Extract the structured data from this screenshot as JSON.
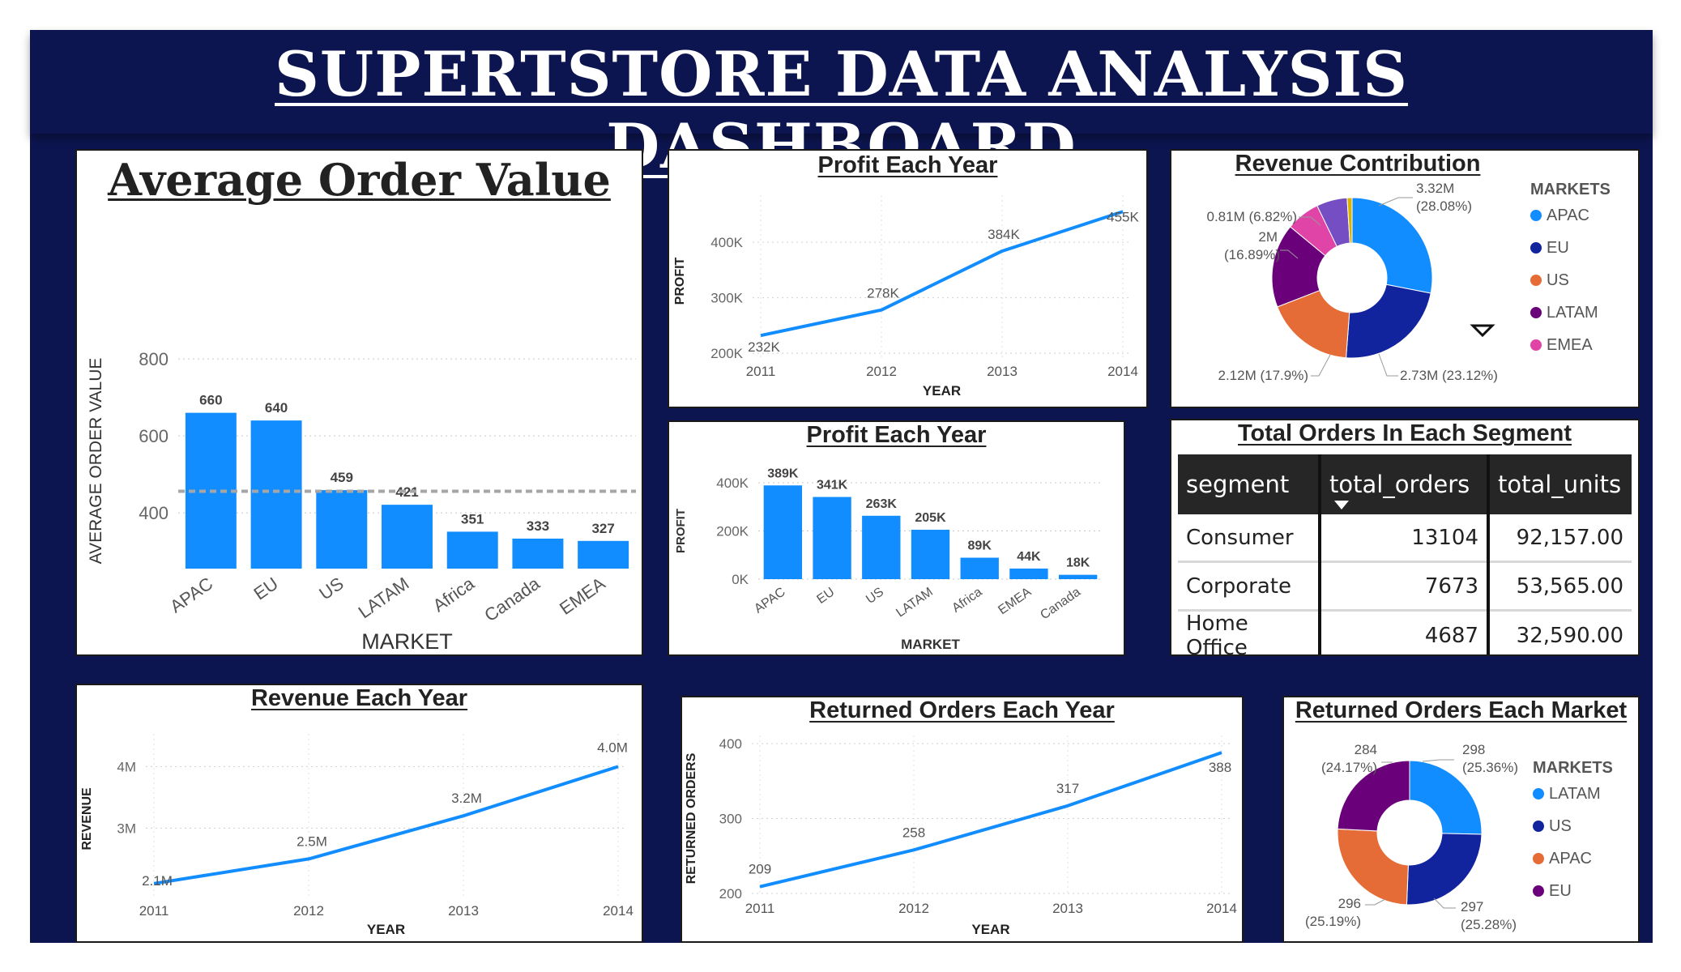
{
  "dashboard": {
    "title": "SUPERTSTORE DATA ANALYSIS DASHBOARD"
  },
  "colors": {
    "background": "#0d1550",
    "bar": "#118dff",
    "line": "#118dff"
  },
  "panels": {
    "avg_order": {
      "title": "Average Order Value",
      "chart_data": {
        "type": "bar",
        "title": "Average Order Value",
        "xlabel": "MARKET",
        "ylabel": "AVERAGE ORDER VALUE",
        "categories": [
          "APAC",
          "EU",
          "US",
          "LATAM",
          "Africa",
          "Canada",
          "EMEA"
        ],
        "values": [
          660,
          640,
          459,
          421,
          351,
          333,
          327
        ],
        "value_labels": [
          "660",
          "640",
          "459",
          "421",
          "351",
          "333",
          "327"
        ],
        "yticks": [
          "800",
          "600",
          "400"
        ],
        "ylim": [
          255,
          815
        ],
        "average_line": 456,
        "grid": true
      }
    },
    "profit_year": {
      "title": "Profit Each Year",
      "chart_data": {
        "type": "line",
        "title": "Profit Each Year",
        "xlabel": "YEAR",
        "ylabel": "PROFIT",
        "x": [
          "2011",
          "2012",
          "2013",
          "2014"
        ],
        "values": [
          232,
          278,
          384,
          455
        ],
        "value_labels": [
          "232K",
          "278K",
          "384K",
          "455K"
        ],
        "yticks": [
          "400K",
          "300K",
          "200K"
        ],
        "ylim": [
          190,
          470
        ],
        "grid": true
      }
    },
    "revenue_contrib": {
      "title": "Revenue Contribution",
      "chart_data": {
        "type": "pie",
        "title": "Revenue Contribution",
        "legend_title": "MARKETS",
        "legend": "right",
        "slices": [
          {
            "name": "APAC",
            "value": 28.08,
            "color": "#118dff",
            "label": "3.32M",
            "label2": "(28.08%)"
          },
          {
            "name": "EU",
            "value": 23.12,
            "color": "#12239e",
            "label": "2.73M (23.12%)"
          },
          {
            "name": "US",
            "value": 17.9,
            "color": "#e66c37",
            "label": "2.12M (17.9%)"
          },
          {
            "name": "LATAM",
            "value": 16.89,
            "color": "#6b007b",
            "label": "2M",
            "label2": "(16.89%)"
          },
          {
            "name": "EMEA",
            "value": 6.82,
            "color": "#e044a7",
            "label": "0.81M (6.82%)"
          },
          {
            "name": "",
            "value": 6.2,
            "color": "#744ec2"
          },
          {
            "name": "",
            "value": 0.99,
            "color": "#d9b300"
          }
        ],
        "legend_items": [
          "APAC",
          "EU",
          "US",
          "LATAM",
          "EMEA"
        ]
      }
    },
    "profit_market": {
      "title": "Profit Each Year",
      "chart_data": {
        "type": "bar",
        "title": "Profit Each Year",
        "xlabel": "MARKET",
        "ylabel": "PROFIT",
        "categories": [
          "APAC",
          "EU",
          "US",
          "LATAM",
          "Africa",
          "EMEA",
          "Canada"
        ],
        "values": [
          389,
          341,
          263,
          205,
          89,
          44,
          18
        ],
        "value_labels": [
          "389K",
          "341K",
          "263K",
          "205K",
          "89K",
          "44K",
          "18K"
        ],
        "yticks": [
          "400K",
          "200K",
          "0K"
        ],
        "ylim": [
          0,
          400
        ],
        "grid": true
      }
    },
    "segments": {
      "title": "Total Orders In Each Segment",
      "columns": [
        "segment",
        "total_orders",
        "total_units"
      ],
      "rows": [
        {
          "segment": "Consumer",
          "total_orders": "13104",
          "total_units": "92,157.00"
        },
        {
          "segment": "Corporate",
          "total_orders": "7673",
          "total_units": "53,565.00"
        },
        {
          "segment": "Home Office",
          "total_orders": "4687",
          "total_units": "32,590.00"
        }
      ]
    },
    "revenue_year": {
      "title": "Revenue Each Year",
      "chart_data": {
        "type": "line",
        "title": "Revenue Each Year",
        "xlabel": "YEAR",
        "ylabel": "REVENUE",
        "x": [
          "2011",
          "2012",
          "2013",
          "2014"
        ],
        "values": [
          2.1,
          2.5,
          3.2,
          4.0
        ],
        "value_labels": [
          "2.1M",
          "2.5M",
          "3.2M",
          "4.0M"
        ],
        "yticks": [
          "4M",
          "3M"
        ],
        "ylim": [
          1.9,
          4.4
        ],
        "grid": true
      }
    },
    "returned_year": {
      "title": "Returned Orders Each Year",
      "chart_data": {
        "type": "line",
        "title": "Returned Orders Each Year",
        "xlabel": "YEAR",
        "ylabel": "RETURNED ORDERS",
        "x": [
          "2011",
          "2012",
          "2013",
          "2014"
        ],
        "values": [
          209,
          258,
          317,
          388
        ],
        "value_labels": [
          "209",
          "258",
          "317",
          "388"
        ],
        "yticks": [
          "400",
          "300",
          "200"
        ],
        "ylim": [
          200,
          400
        ],
        "grid": true
      }
    },
    "returned_market": {
      "title": "Returned Orders Each Market",
      "chart_data": {
        "type": "pie",
        "title": "Returned Orders Each Market",
        "legend_title": "MARKETS",
        "legend": "right",
        "slices": [
          {
            "name": "LATAM",
            "value": 298,
            "color": "#118dff",
            "label": "298",
            "label2": "(25.36%)"
          },
          {
            "name": "US",
            "value": 297,
            "color": "#12239e",
            "label": "297",
            "label2": "(25.28%)"
          },
          {
            "name": "APAC",
            "value": 296,
            "color": "#e66c37",
            "label": "296",
            "label2": "(25.19%)"
          },
          {
            "name": "EU",
            "value": 284,
            "color": "#6b007b",
            "label": "284",
            "label2": "(24.17%)"
          }
        ],
        "legend_items": [
          "LATAM",
          "US",
          "APAC",
          "EU"
        ]
      }
    }
  }
}
